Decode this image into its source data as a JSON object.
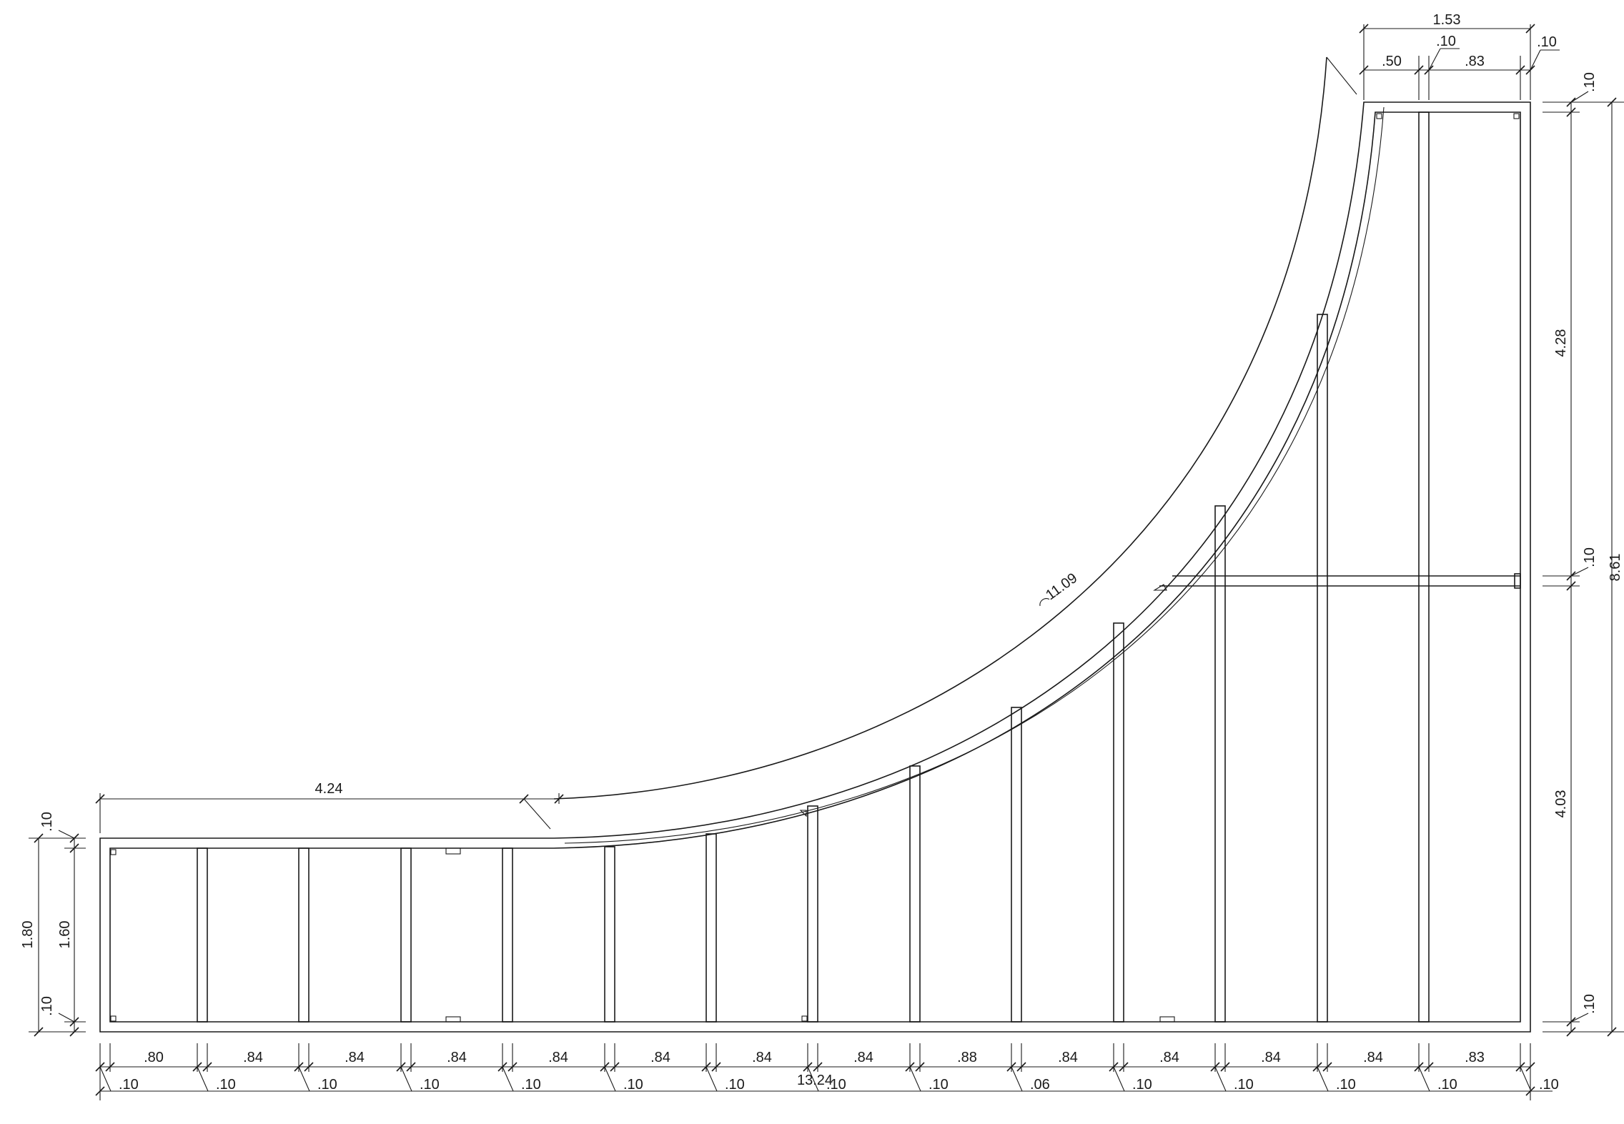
{
  "drawing": {
    "type": "ramp plan (quarter-pipe) with dimensions",
    "line_color": "#1a1a1a",
    "background": "#ffffff"
  },
  "dimensions": {
    "top_total": "1.53",
    "top_post": ".10",
    "top_left_seg": ".50",
    "top_right_seg": ".83",
    "top_edge": ".10",
    "right_top_edge": ".10",
    "right_upper_span": "4.28",
    "right_mid_beam": ".10",
    "right_total": "8.61",
    "right_lower_span": "4.03",
    "right_bottom_edge": ".10",
    "left_top_edge": ".10",
    "left_outer_height": "1.80",
    "left_inner_height": "1.60",
    "left_bottom_edge": ".10",
    "flat_length": "4.24",
    "arc_length": "11.09",
    "bottom_spans": [
      ".80",
      ".84",
      ".84",
      ".84",
      ".84",
      ".84",
      ".84",
      ".84",
      ".88",
      ".84",
      ".84",
      ".84",
      ".84",
      ".83"
    ],
    "bottom_posts": [
      ".10",
      ".10",
      ".10",
      ".10",
      ".10",
      ".10",
      ".10",
      ".10",
      ".10",
      ".06",
      ".10",
      ".10",
      ".10",
      ".10",
      ".10"
    ],
    "bottom_total": "13.24"
  }
}
